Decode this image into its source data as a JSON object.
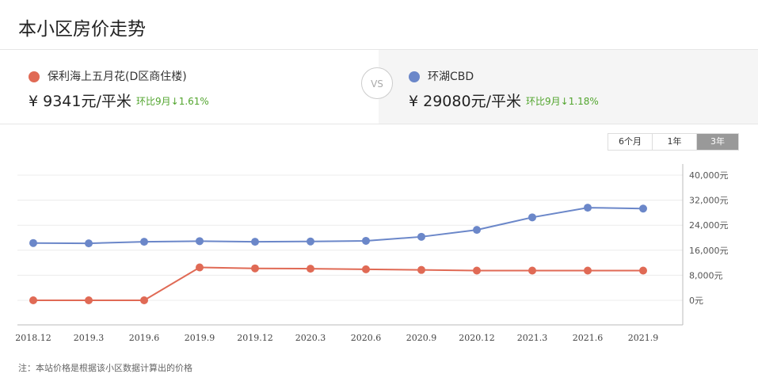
{
  "page_title": "本小区房价走势",
  "compare": {
    "left": {
      "name": "保利海上五月花(D区商住楼)",
      "price": "¥ 9341元/平米",
      "change": "环比9月↓1.61%",
      "color": "#e06a55"
    },
    "vs_label": "VS",
    "right": {
      "name": "环湖CBD",
      "price": "¥ 29080元/平米",
      "change": "环比9月↓1.18%",
      "color": "#6b87c9"
    }
  },
  "tabs": [
    {
      "label": "6个月",
      "active": false
    },
    {
      "label": "1年",
      "active": false
    },
    {
      "label": "3年",
      "active": true
    }
  ],
  "chart_data": {
    "type": "line",
    "categories": [
      "2018.12",
      "2019.3",
      "2019.6",
      "2019.9",
      "2019.12",
      "2020.3",
      "2020.6",
      "2020.9",
      "2020.12",
      "2021.3",
      "2021.6",
      "2021.9"
    ],
    "series": [
      {
        "name": "环湖CBD",
        "color": "#6b87c9",
        "values": [
          18300,
          18200,
          18700,
          18900,
          18700,
          18800,
          19000,
          20300,
          22500,
          26500,
          29600,
          29300
        ]
      },
      {
        "name": "保利海上五月花(D区商住楼)",
        "color": "#e06a55",
        "values": [
          0,
          0,
          0,
          10500,
          10200,
          10100,
          9900,
          9700,
          9500,
          9500,
          9500,
          9500
        ]
      }
    ],
    "y_ticks": [
      "0元",
      "8,000元",
      "16,000元",
      "24,000元",
      "32,000元",
      "40,000元"
    ],
    "ylim": [
      0,
      40000
    ],
    "grid": true
  },
  "footnote": "注：本站价格是根据该小区数据计算出的价格"
}
